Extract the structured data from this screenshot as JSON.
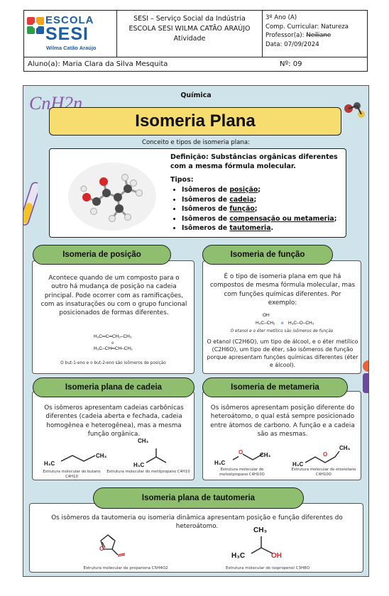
{
  "header": {
    "logo_line1": "ESCOLA",
    "logo_line2": "SESI",
    "logo_line3": "Wilma Catão Araújo",
    "institution": "SESI – Serviço Social da Indústria",
    "school": "ESCOLA SESI WILMA CATÃO ARAÚJO",
    "doc_type": "Atividade",
    "grade": "3º Ano (A)",
    "subject_line": "Comp. Curricular: Natureza",
    "teacher_label": "Professor(a): ",
    "teacher_name": "Neiliane",
    "date": "Data: 07/09/2024",
    "student": "Aluno(a): Maria Clara da Silva Mesquita",
    "number": "Nº: 09"
  },
  "poster": {
    "subject": "Química",
    "formula_deco": "CnH2n",
    "title": "Isomeria Plana",
    "concept_label": "Conceito e tipos de isomeria plana:",
    "definition": "Definição: Substâncias orgânicas diferentes com a mesma fórmula molecular.",
    "types_title": "Tipos:",
    "types": [
      {
        "pre": "Isômeros de ",
        "term": "posição",
        "post": ";"
      },
      {
        "pre": "Isômeros de ",
        "term": "cadeia",
        "post": ";"
      },
      {
        "pre": "Isômeros de ",
        "term": "função",
        "post": ";"
      },
      {
        "pre": "Isômeros de ",
        "term": "compensação ou metameria",
        "post": ";"
      },
      {
        "pre": "Isômeros de ",
        "term": "tautomeria",
        "post": "."
      }
    ],
    "posicao": {
      "title": "Isomeria de posição",
      "text": "Acontece quando de um composto para o outro há mudança de posição na cadeia principal. Pode ocorrer com as ramificações, com as insaturações ou com o grupo funcional posicionados de formas diferentes.",
      "formula1": "H₃C═C═CH₂–CH₃",
      "formula_e": "e",
      "formula2": "H₃C–CH═CH–CH₃",
      "caption": "O but-1-eno e o but-2-eno são isômeros de posição"
    },
    "funcao": {
      "title": "Isomeria de função",
      "text": "É o tipo de isomeria plana em que há compostos de mesma fórmula molecular, mas com funções químicas diferentes. Por exemplo:",
      "oh": "OH",
      "formula1": "H₃C–CH₂",
      "formula_e": "e",
      "formula2": "H₃C–O–CH₃",
      "caption": "O etanol e o éter metílico são isômeros de função",
      "text2": "O etanol (C2H6O), um tipo de álcool, e o éter metílico (C2H6O), um tipo de éter, são isômeros de função porque apresentam funções químicas diferentes (éter e álcool)."
    },
    "cadeia": {
      "title": "Isomeria plana de cadeia",
      "text": "Os isômeros apresentam cadeias carbônicas diferentes (cadeia aberta e fechada, cadeia homogênea e heterogênea), mas a mesma função orgânica.",
      "mol1_h3c": "H₃C",
      "mol1_ch3": "CH₃",
      "mol1_caption": "Estrutura molecular do butano C4H10",
      "mol2_h3c": "H₃C",
      "mol2_ch3": "CH₃",
      "mol2_caption": "Estrutura molecular do metilpropano C4H10"
    },
    "metameria": {
      "title": "Isomeria de metameria",
      "text": "Os isômeros apresentam posição diferente do heteroátomo, o qual está sempre posicionado entre átomos de carbono. A função e a cadeia são as mesmas.",
      "mol1_h3c": "H₃C",
      "mol1_ch3": "CH₃",
      "mol1_o": "O",
      "mol1_caption": "Estrutura molecular de metoxipropano C4H10O",
      "mol2_h3c": "H₃C",
      "mol2_ch3": "CH₃",
      "mol2_o": "O",
      "mol2_caption": "Estrutura molecular de etoxietano C4H10O"
    },
    "tautomeria": {
      "title": "Isomeria plana de tautomeria",
      "text": "Os isômeros da tautomeria ou isomeria dinâmica apresentam posição e função diferentes do heteroátomo.",
      "mol1_o": "O",
      "mol1_caption": "Estrutura molecular de propanona C5H4O2",
      "mol2_ch3": "CH₃",
      "mol2_h3c": "H₃C",
      "mol2_oh": "OH",
      "mol2_caption": "Estrutura molecular do isopropenol C3H8O"
    }
  },
  "colors": {
    "poster_bg": "#cfe3ea",
    "title_yellow": "#f7dc6f",
    "pill_green": "#8fbe6f",
    "logo_blue": "#1c5fa8",
    "oxygen_red": "#d9262b"
  }
}
